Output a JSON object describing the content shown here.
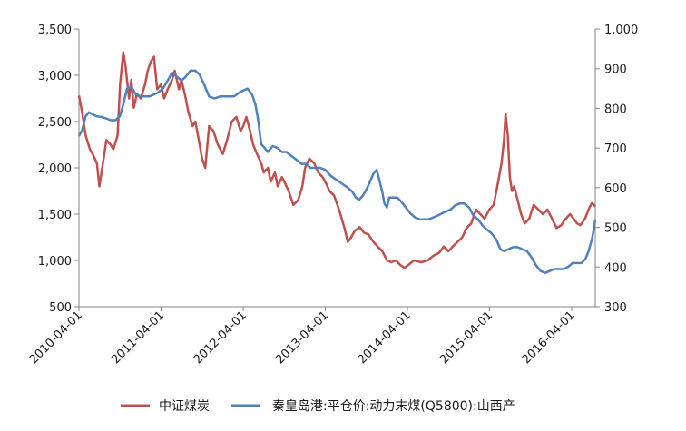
{
  "chart_data": {
    "type": "line",
    "title": "",
    "xlabel": "",
    "ylabel_left": "",
    "ylabel_right": "",
    "x_ticks": [
      "2010-04-01",
      "2011-04-01",
      "2012-04-01",
      "2013-04-01",
      "2014-04-01",
      "2015-04-01",
      "2016-04-01"
    ],
    "x_range": [
      "2010-04-01",
      "2016-07-15"
    ],
    "ylim_left": [
      500,
      3500
    ],
    "yticks_left": [
      "500",
      "1,000",
      "1,500",
      "2,000",
      "2,500",
      "3,000",
      "3,500"
    ],
    "ylim_right": [
      300,
      1000
    ],
    "yticks_right": [
      "300",
      "400",
      "500",
      "600",
      "700",
      "800",
      "900",
      "1,000"
    ],
    "grid": false,
    "legend_position": "bottom",
    "series": [
      {
        "name": "中证煤炭",
        "axis": "left",
        "color": "#c0504d",
        "points": [
          [
            "2010-04-01",
            2780
          ],
          [
            "2010-04-15",
            2600
          ],
          [
            "2010-05-01",
            2350
          ],
          [
            "2010-05-20",
            2200
          ],
          [
            "2010-06-01",
            2150
          ],
          [
            "2010-06-20",
            2050
          ],
          [
            "2010-07-01",
            1800
          ],
          [
            "2010-07-20",
            2100
          ],
          [
            "2010-08-01",
            2300
          ],
          [
            "2010-08-20",
            2250
          ],
          [
            "2010-09-01",
            2200
          ],
          [
            "2010-09-20",
            2350
          ],
          [
            "2010-10-01",
            2900
          ],
          [
            "2010-10-15",
            3250
          ],
          [
            "2010-10-25",
            3100
          ],
          [
            "2010-11-10",
            2750
          ],
          [
            "2010-11-20",
            2950
          ],
          [
            "2010-12-01",
            2650
          ],
          [
            "2010-12-15",
            2800
          ],
          [
            "2011-01-01",
            2750
          ],
          [
            "2011-01-20",
            2900
          ],
          [
            "2011-02-01",
            3050
          ],
          [
            "2011-02-15",
            3150
          ],
          [
            "2011-03-01",
            3200
          ],
          [
            "2011-03-15",
            2850
          ],
          [
            "2011-04-01",
            2900
          ],
          [
            "2011-04-15",
            2750
          ],
          [
            "2011-05-01",
            2850
          ],
          [
            "2011-05-20",
            2950
          ],
          [
            "2011-06-01",
            3050
          ],
          [
            "2011-06-20",
            2850
          ],
          [
            "2011-07-01",
            2950
          ],
          [
            "2011-07-20",
            2750
          ],
          [
            "2011-08-01",
            2600
          ],
          [
            "2011-08-20",
            2450
          ],
          [
            "2011-09-01",
            2500
          ],
          [
            "2011-09-20",
            2250
          ],
          [
            "2011-10-01",
            2100
          ],
          [
            "2011-10-15",
            2000
          ],
          [
            "2011-11-01",
            2450
          ],
          [
            "2011-11-20",
            2400
          ],
          [
            "2011-12-10",
            2250
          ],
          [
            "2012-01-01",
            2150
          ],
          [
            "2012-01-20",
            2300
          ],
          [
            "2012-02-10",
            2500
          ],
          [
            "2012-03-01",
            2550
          ],
          [
            "2012-03-20",
            2400
          ],
          [
            "2012-04-01",
            2450
          ],
          [
            "2012-04-15",
            2550
          ],
          [
            "2012-05-01",
            2400
          ],
          [
            "2012-05-15",
            2250
          ],
          [
            "2012-06-01",
            2150
          ],
          [
            "2012-06-20",
            2050
          ],
          [
            "2012-07-01",
            1950
          ],
          [
            "2012-07-20",
            2000
          ],
          [
            "2012-08-01",
            1850
          ],
          [
            "2012-08-20",
            1950
          ],
          [
            "2012-09-01",
            1800
          ],
          [
            "2012-09-20",
            1900
          ],
          [
            "2012-10-01",
            1850
          ],
          [
            "2012-10-20",
            1750
          ],
          [
            "2012-11-10",
            1600
          ],
          [
            "2012-12-01",
            1650
          ],
          [
            "2012-12-20",
            1800
          ],
          [
            "2013-01-01",
            2000
          ],
          [
            "2013-01-20",
            2100
          ],
          [
            "2013-02-10",
            2050
          ],
          [
            "2013-03-01",
            1950
          ],
          [
            "2013-03-20",
            1900
          ],
          [
            "2013-04-01",
            1850
          ],
          [
            "2013-04-20",
            1750
          ],
          [
            "2013-05-10",
            1700
          ],
          [
            "2013-06-01",
            1550
          ],
          [
            "2013-06-25",
            1350
          ],
          [
            "2013-07-10",
            1200
          ],
          [
            "2013-07-25",
            1250
          ],
          [
            "2013-08-10",
            1320
          ],
          [
            "2013-09-01",
            1360
          ],
          [
            "2013-09-20",
            1300
          ],
          [
            "2013-10-10",
            1280
          ],
          [
            "2013-11-01",
            1200
          ],
          [
            "2013-11-20",
            1150
          ],
          [
            "2013-12-10",
            1100
          ],
          [
            "2014-01-01",
            1000
          ],
          [
            "2014-01-20",
            980
          ],
          [
            "2014-02-10",
            1000
          ],
          [
            "2014-03-01",
            950
          ],
          [
            "2014-03-20",
            920
          ],
          [
            "2014-04-10",
            960
          ],
          [
            "2014-05-01",
            1000
          ],
          [
            "2014-06-01",
            980
          ],
          [
            "2014-07-01",
            1000
          ],
          [
            "2014-07-25",
            1050
          ],
          [
            "2014-08-20",
            1080
          ],
          [
            "2014-09-10",
            1150
          ],
          [
            "2014-10-01",
            1100
          ],
          [
            "2014-10-20",
            1150
          ],
          [
            "2014-11-10",
            1200
          ],
          [
            "2014-12-01",
            1250
          ],
          [
            "2014-12-20",
            1350
          ],
          [
            "2015-01-10",
            1400
          ],
          [
            "2015-02-01",
            1550
          ],
          [
            "2015-02-20",
            1500
          ],
          [
            "2015-03-10",
            1450
          ],
          [
            "2015-04-01",
            1550
          ],
          [
            "2015-04-20",
            1600
          ],
          [
            "2015-05-10",
            1850
          ],
          [
            "2015-05-25",
            2050
          ],
          [
            "2015-06-05",
            2300
          ],
          [
            "2015-06-12",
            2580
          ],
          [
            "2015-06-22",
            2350
          ],
          [
            "2015-07-01",
            1900
          ],
          [
            "2015-07-10",
            1750
          ],
          [
            "2015-07-20",
            1800
          ],
          [
            "2015-08-05",
            1650
          ],
          [
            "2015-08-20",
            1500
          ],
          [
            "2015-09-05",
            1400
          ],
          [
            "2015-09-25",
            1450
          ],
          [
            "2015-10-15",
            1600
          ],
          [
            "2015-11-05",
            1550
          ],
          [
            "2015-11-25",
            1500
          ],
          [
            "2015-12-15",
            1550
          ],
          [
            "2016-01-05",
            1450
          ],
          [
            "2016-01-25",
            1350
          ],
          [
            "2016-02-15",
            1380
          ],
          [
            "2016-03-05",
            1450
          ],
          [
            "2016-03-25",
            1500
          ],
          [
            "2016-04-10",
            1450
          ],
          [
            "2016-04-25",
            1400
          ],
          [
            "2016-05-10",
            1380
          ],
          [
            "2016-05-30",
            1450
          ],
          [
            "2016-06-15",
            1550
          ],
          [
            "2016-06-30",
            1620
          ],
          [
            "2016-07-10",
            1600
          ],
          [
            "2016-07-15",
            1580
          ]
        ]
      },
      {
        "name": "秦皇岛港:平仓价:动力末煤(Q5800):山西产",
        "axis": "right",
        "color": "#4f81bd",
        "points": [
          [
            "2010-04-01",
            730
          ],
          [
            "2010-04-15",
            745
          ],
          [
            "2010-05-01",
            780
          ],
          [
            "2010-05-15",
            790
          ],
          [
            "2010-06-01",
            785
          ],
          [
            "2010-06-20",
            780
          ],
          [
            "2010-07-10",
            778
          ],
          [
            "2010-07-30",
            775
          ],
          [
            "2010-08-20",
            770
          ],
          [
            "2010-09-10",
            770
          ],
          [
            "2010-09-30",
            780
          ],
          [
            "2010-10-15",
            810
          ],
          [
            "2010-11-01",
            850
          ],
          [
            "2010-11-20",
            855
          ],
          [
            "2010-12-10",
            835
          ],
          [
            "2011-01-01",
            830
          ],
          [
            "2011-01-20",
            830
          ],
          [
            "2011-02-10",
            830
          ],
          [
            "2011-03-01",
            835
          ],
          [
            "2011-03-20",
            840
          ],
          [
            "2011-04-10",
            850
          ],
          [
            "2011-05-01",
            870
          ],
          [
            "2011-05-20",
            890
          ],
          [
            "2011-06-10",
            880
          ],
          [
            "2011-07-01",
            870
          ],
          [
            "2011-07-20",
            880
          ],
          [
            "2011-08-10",
            895
          ],
          [
            "2011-09-01",
            895
          ],
          [
            "2011-09-20",
            885
          ],
          [
            "2011-10-10",
            860
          ],
          [
            "2011-11-01",
            830
          ],
          [
            "2011-11-25",
            825
          ],
          [
            "2011-12-20",
            830
          ],
          [
            "2012-01-20",
            830
          ],
          [
            "2012-02-20",
            830
          ],
          [
            "2012-03-15",
            840
          ],
          [
            "2012-04-01",
            845
          ],
          [
            "2012-04-20",
            850
          ],
          [
            "2012-05-10",
            835
          ],
          [
            "2012-05-25",
            810
          ],
          [
            "2012-06-05",
            775
          ],
          [
            "2012-06-20",
            710
          ],
          [
            "2012-07-05",
            700
          ],
          [
            "2012-07-20",
            690
          ],
          [
            "2012-08-10",
            705
          ],
          [
            "2012-09-01",
            700
          ],
          [
            "2012-09-20",
            690
          ],
          [
            "2012-10-10",
            690
          ],
          [
            "2012-11-01",
            680
          ],
          [
            "2012-11-25",
            670
          ],
          [
            "2012-12-15",
            660
          ],
          [
            "2013-01-05",
            660
          ],
          [
            "2013-01-25",
            650
          ],
          [
            "2013-02-15",
            650
          ],
          [
            "2013-03-10",
            650
          ],
          [
            "2013-04-01",
            645
          ],
          [
            "2013-04-25",
            630
          ],
          [
            "2013-05-20",
            620
          ],
          [
            "2013-06-15",
            610
          ],
          [
            "2013-07-10",
            600
          ],
          [
            "2013-07-30",
            590
          ],
          [
            "2013-08-15",
            575
          ],
          [
            "2013-08-30",
            570
          ],
          [
            "2013-09-15",
            580
          ],
          [
            "2013-10-05",
            600
          ],
          [
            "2013-10-20",
            620
          ],
          [
            "2013-11-01",
            635
          ],
          [
            "2013-11-15",
            645
          ],
          [
            "2013-11-25",
            625
          ],
          [
            "2013-12-10",
            590
          ],
          [
            "2013-12-20",
            560
          ],
          [
            "2013-12-31",
            550
          ],
          [
            "2014-01-10",
            575
          ],
          [
            "2014-01-25",
            575
          ],
          [
            "2014-02-15",
            575
          ],
          [
            "2014-03-05",
            565
          ],
          [
            "2014-03-25",
            550
          ],
          [
            "2014-04-15",
            535
          ],
          [
            "2014-05-05",
            525
          ],
          [
            "2014-05-25",
            520
          ],
          [
            "2014-06-15",
            520
          ],
          [
            "2014-07-05",
            520
          ],
          [
            "2014-07-25",
            525
          ],
          [
            "2014-08-15",
            530
          ],
          [
            "2014-09-01",
            535
          ],
          [
            "2014-09-20",
            540
          ],
          [
            "2014-10-10",
            545
          ],
          [
            "2014-10-30",
            555
          ],
          [
            "2014-11-20",
            560
          ],
          [
            "2014-12-10",
            560
          ],
          [
            "2015-01-01",
            550
          ],
          [
            "2015-01-20",
            530
          ],
          [
            "2015-02-10",
            520
          ],
          [
            "2015-03-01",
            505
          ],
          [
            "2015-03-20",
            495
          ],
          [
            "2015-04-10",
            485
          ],
          [
            "2015-05-01",
            470
          ],
          [
            "2015-05-20",
            445
          ],
          [
            "2015-06-05",
            440
          ],
          [
            "2015-06-25",
            445
          ],
          [
            "2015-07-15",
            450
          ],
          [
            "2015-08-05",
            450
          ],
          [
            "2015-08-25",
            445
          ],
          [
            "2015-09-15",
            440
          ],
          [
            "2015-10-05",
            425
          ],
          [
            "2015-10-25",
            405
          ],
          [
            "2015-11-15",
            390
          ],
          [
            "2015-12-05",
            385
          ],
          [
            "2015-12-25",
            390
          ],
          [
            "2016-01-15",
            395
          ],
          [
            "2016-02-05",
            395
          ],
          [
            "2016-02-25",
            395
          ],
          [
            "2016-03-15",
            400
          ],
          [
            "2016-04-05",
            410
          ],
          [
            "2016-04-25",
            410
          ],
          [
            "2016-05-15",
            410
          ],
          [
            "2016-06-01",
            420
          ],
          [
            "2016-06-15",
            440
          ],
          [
            "2016-06-30",
            470
          ],
          [
            "2016-07-10",
            500
          ],
          [
            "2016-07-15",
            520
          ]
        ]
      }
    ]
  }
}
